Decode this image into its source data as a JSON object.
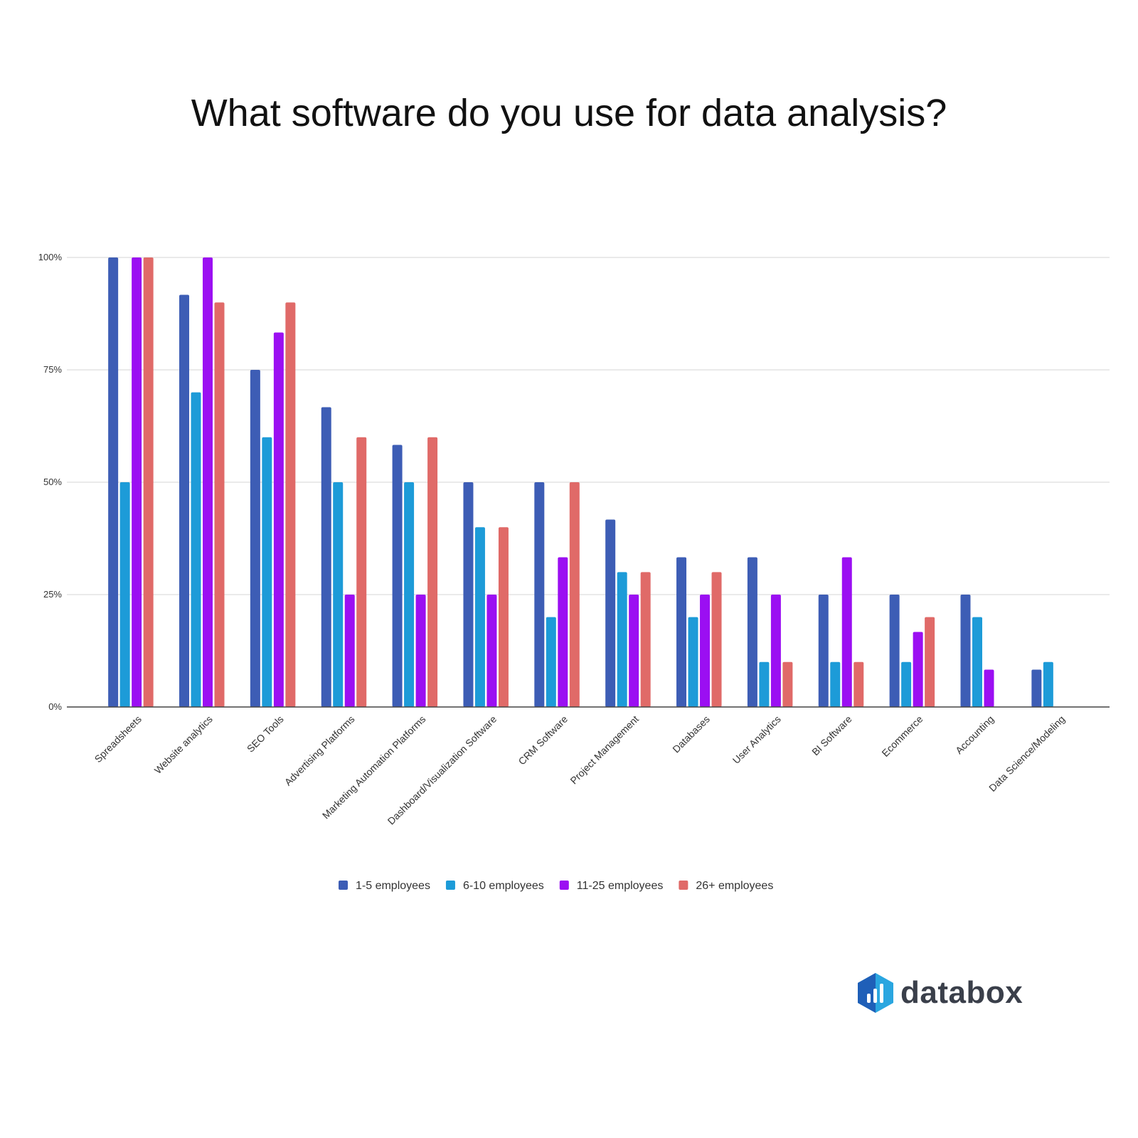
{
  "chart_data": {
    "type": "bar",
    "title": "What software do you use for data analysis?",
    "xlabel": "",
    "ylabel": "",
    "ylim": [
      0,
      100
    ],
    "y_ticks": [
      "0%",
      "25%",
      "50%",
      "75%",
      "100%"
    ],
    "y_tick_values": [
      0,
      25,
      50,
      75,
      100
    ],
    "grid": true,
    "legend_position": "bottom",
    "categories": [
      "Spreadsheets",
      "Website analytics",
      "SEO Tools",
      "Advertising Platforms",
      "Marketing Automation Platforms",
      "Dashboard/Visualization Software",
      "CRM Software",
      "Project Management",
      "Databases",
      "User Analytics",
      "BI Software",
      "Ecommerce",
      "Accounting",
      "Data Science/Modeling"
    ],
    "series": [
      {
        "name": "1-5 employees",
        "color": "#3d5db5",
        "values": [
          100,
          91.7,
          75,
          66.7,
          58.3,
          50,
          50,
          41.7,
          33.3,
          33.3,
          25,
          25,
          25,
          8.3
        ]
      },
      {
        "name": "6-10 employees",
        "color": "#1d9bd8",
        "values": [
          50,
          70,
          60,
          50,
          50,
          40,
          20,
          30,
          20,
          10,
          10,
          10,
          20,
          10
        ]
      },
      {
        "name": "11-25 employees",
        "color": "#9b0ff2",
        "values": [
          100,
          100,
          83.3,
          25,
          25,
          25,
          33.3,
          25,
          25,
          25,
          33.3,
          16.7,
          8.3,
          null
        ]
      },
      {
        "name": "26+ employees",
        "color": "#e06a68",
        "values": [
          100,
          90,
          90,
          60,
          60,
          40,
          50,
          30,
          30,
          10,
          10,
          20,
          null,
          null
        ]
      }
    ]
  },
  "brand": {
    "name": "databox",
    "icon": "databox-logo-icon",
    "colors": {
      "hex_dark": "#1f5fb8",
      "hex_light": "#2aa6e0",
      "text": "#3a3f4a"
    }
  }
}
